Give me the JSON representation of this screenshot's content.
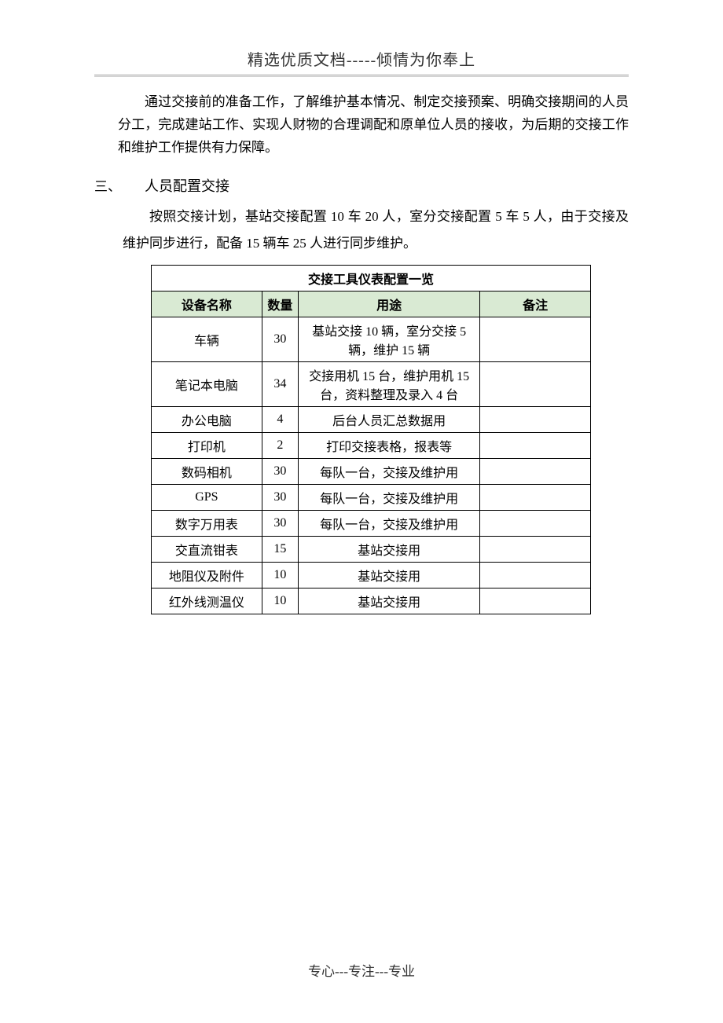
{
  "header": {
    "title": "精选优质文档-----倾情为你奉上"
  },
  "intro_paragraph": "通过交接前的准备工作，了解维护基本情况、制定交接预案、明确交接期间的人员分工，完成建站工作、实现人财物的合理调配和原单位人员的接收，为后期的交接工作和维护工作提供有力保障。",
  "section3": {
    "num": "三、",
    "title": "人员配置交接",
    "body": "按照交接计划，基站交接配置 10 车 20 人，室分交接配置 5 车 5 人，由于交接及维护同步进行，配备 15 辆车 25 人进行同步维护。"
  },
  "table": {
    "title": "交接工具仪表配置一览",
    "columns": [
      "设备名称",
      "数量",
      "用途",
      "备注"
    ],
    "header_bg": "#d9ead3",
    "border_color": "#000000",
    "rows": [
      {
        "name": "车辆",
        "qty": "30",
        "use": "基站交接 10 辆，室分交接 5 辆，维护 15 辆",
        "note": ""
      },
      {
        "name": "笔记本电脑",
        "qty": "34",
        "use": "交接用机 15 台，维护用机 15 台，资料整理及录入 4 台",
        "note": ""
      },
      {
        "name": "办公电脑",
        "qty": "4",
        "use": "后台人员汇总数据用",
        "note": ""
      },
      {
        "name": "打印机",
        "qty": "2",
        "use": "打印交接表格，报表等",
        "note": ""
      },
      {
        "name": "数码相机",
        "qty": "30",
        "use": "每队一台，交接及维护用",
        "note": ""
      },
      {
        "name": "GPS",
        "qty": "30",
        "use": "每队一台，交接及维护用",
        "note": ""
      },
      {
        "name": "数字万用表",
        "qty": "30",
        "use": "每队一台，交接及维护用",
        "note": ""
      },
      {
        "name": "交直流钳表",
        "qty": "15",
        "use": "基站交接用",
        "note": ""
      },
      {
        "name": "地阻仪及附件",
        "qty": "10",
        "use": "基站交接用",
        "note": ""
      },
      {
        "name": "红外线测温仪",
        "qty": "10",
        "use": "基站交接用",
        "note": ""
      }
    ]
  },
  "footer": {
    "text": "专心---专注---专业"
  }
}
